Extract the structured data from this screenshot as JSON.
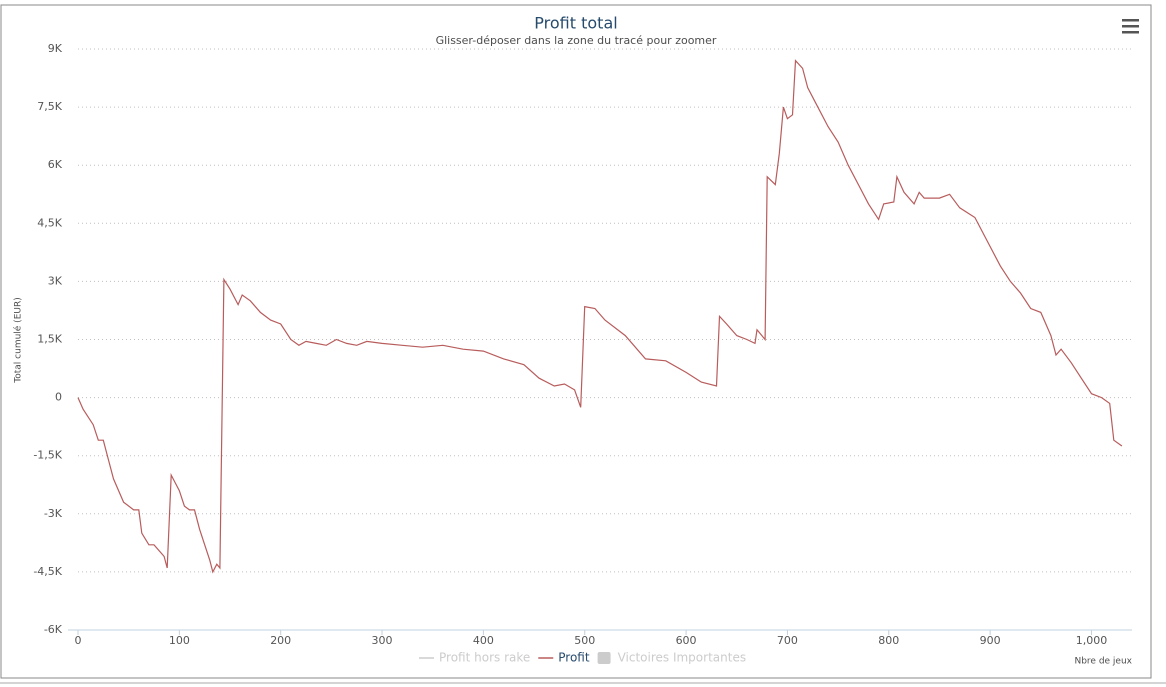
{
  "chart_data": {
    "type": "line",
    "title": "Profit total",
    "subtitle": "Glisser-déposer dans la zone du tracé pour zoomer",
    "x_label": "Nbre de jeux",
    "y_label": "Total cumulé (EUR)",
    "xlim": [
      0,
      1040
    ],
    "xticks": [
      0,
      100,
      200,
      300,
      400,
      500,
      600,
      700,
      800,
      900,
      {
        "value": 1000,
        "label": "1,000"
      }
    ],
    "ylim": [
      -6000,
      9000
    ],
    "yticks": [
      {
        "value": -6000,
        "label": "-6K"
      },
      {
        "value": -4500,
        "label": "-4,5K"
      },
      {
        "value": -3000,
        "label": "-3K"
      },
      {
        "value": -1500,
        "label": "-1,5K"
      },
      0,
      {
        "value": 1500,
        "label": "1,5K"
      },
      {
        "value": 3000,
        "label": "3K"
      },
      {
        "value": 4500,
        "label": "4,5K"
      },
      {
        "value": 6000,
        "label": "6K"
      },
      {
        "value": 7500,
        "label": "7,5K"
      },
      {
        "value": 9000,
        "label": "9K"
      }
    ],
    "grid": true,
    "x": [
      0,
      5,
      15,
      20,
      25,
      30,
      35,
      45,
      55,
      60,
      63,
      70,
      75,
      85,
      88,
      92,
      100,
      105,
      110,
      115,
      120,
      125,
      130,
      133,
      137,
      140,
      144,
      150,
      158,
      162,
      170,
      180,
      190,
      200,
      210,
      218,
      225,
      235,
      245,
      255,
      265,
      275,
      285,
      300,
      320,
      340,
      360,
      380,
      400,
      420,
      440,
      455,
      470,
      480,
      490,
      496,
      500,
      510,
      520,
      540,
      560,
      580,
      600,
      615,
      630,
      633,
      640,
      650,
      660,
      668,
      670,
      678,
      680,
      688,
      692,
      696,
      700,
      705,
      708,
      715,
      720,
      728,
      740,
      750,
      760,
      770,
      780,
      790,
      795,
      805,
      808,
      815,
      825,
      830,
      835,
      850,
      860,
      870,
      885,
      900,
      910,
      920,
      930,
      940,
      950,
      960,
      965,
      970,
      980,
      990,
      1000,
      1010,
      1018,
      1022,
      1030
    ],
    "series": [
      {
        "name": "Profit hors rake",
        "color": "#cccccc",
        "visible": false,
        "symbol": "line"
      },
      {
        "name": "Profit",
        "color": "#b85c5c",
        "visible": true,
        "symbol": "line",
        "values": [
          0,
          -300,
          -700,
          -1100,
          -1100,
          -1600,
          -2100,
          -2700,
          -2900,
          -2900,
          -3500,
          -3800,
          -3800,
          -4100,
          -4400,
          -2000,
          -2400,
          -2800,
          -2900,
          -2900,
          -3400,
          -3800,
          -4200,
          -4500,
          -4300,
          -4400,
          3050,
          2800,
          2400,
          2650,
          2500,
          2200,
          2000,
          1900,
          1500,
          1350,
          1450,
          1400,
          1350,
          1500,
          1400,
          1350,
          1450,
          1400,
          1350,
          1300,
          1350,
          1250,
          1200,
          1000,
          850,
          500,
          300,
          350,
          200,
          -250,
          2350,
          2300,
          2000,
          1600,
          1000,
          950,
          650,
          400,
          300,
          2100,
          1900,
          1600,
          1500,
          1400,
          1750,
          1500,
          5700,
          5500,
          6300,
          7500,
          7200,
          7300,
          8700,
          8500,
          8000,
          7600,
          7000,
          6600,
          6000,
          5500,
          5000,
          4600,
          5000,
          5050,
          5700,
          5300,
          5000,
          5300,
          5150,
          5150,
          5250,
          4900,
          4650,
          3900,
          3400,
          3000,
          2700,
          2300,
          2200,
          1600,
          1100,
          1250,
          900,
          500,
          100,
          0,
          -150,
          -1100,
          -1250
        ]
      },
      {
        "name": "Victoires Importantes",
        "color": "#cccccc",
        "visible": false,
        "symbol": "area"
      }
    ]
  }
}
